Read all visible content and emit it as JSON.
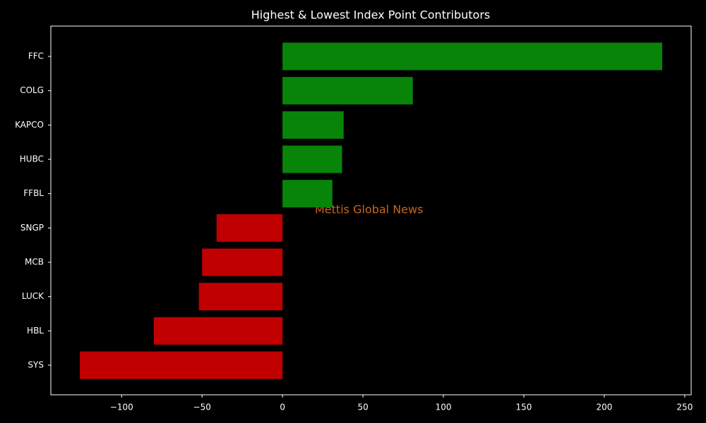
{
  "chart_data": {
    "type": "barh",
    "title": "Highest & Lowest Index Point Contributors",
    "annotation": "Mettis Global News",
    "categories": [
      "FFC",
      "COLG",
      "KAPCO",
      "HUBC",
      "FFBL",
      "SNGP",
      "MCB",
      "LUCK",
      "HBL",
      "SYS"
    ],
    "values": [
      236,
      81,
      38,
      37,
      31,
      -41,
      -50,
      -52,
      -80,
      -126
    ],
    "colors": [
      "#088408",
      "#088408",
      "#088408",
      "#088408",
      "#088408",
      "#c00000",
      "#c00000",
      "#c00000",
      "#c00000",
      "#c00000"
    ],
    "xlim": [
      -144,
      254
    ],
    "xticks": [
      {
        "value": -100,
        "label": "−100"
      },
      {
        "value": -50,
        "label": "−50"
      },
      0,
      50,
      100,
      150,
      200,
      250
    ]
  }
}
